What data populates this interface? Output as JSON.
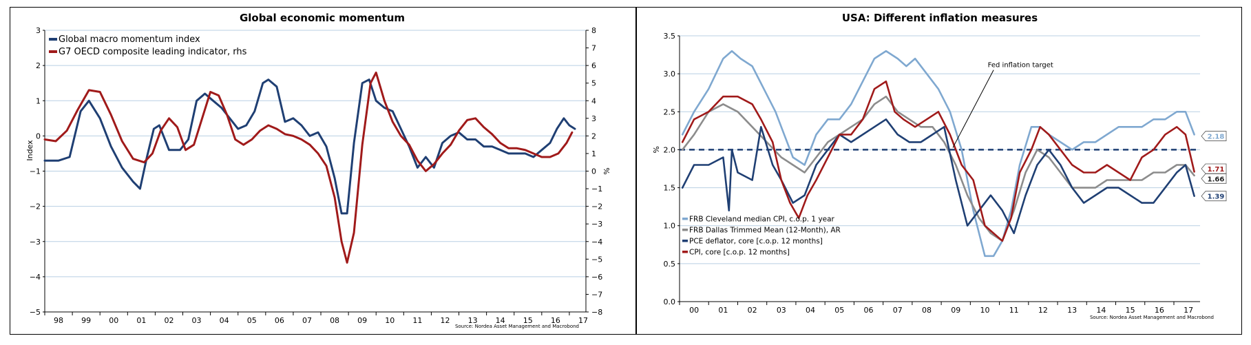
{
  "chart_data": [
    {
      "type": "line",
      "title": "Global economic momentum",
      "ylabel": "Index",
      "y2label": "%",
      "ylim": [
        -5,
        3
      ],
      "y2lim": [
        -8,
        8
      ],
      "xlim": [
        1998,
        2017.6
      ],
      "yticks": [
        3,
        2,
        1,
        0,
        -1,
        -2,
        -3,
        -4,
        -5
      ],
      "y2ticks": [
        8,
        7,
        6,
        5,
        4,
        3,
        2,
        1,
        0,
        -1,
        -2,
        -3,
        -4,
        -5,
        -6,
        -7,
        -8
      ],
      "xtick_labels": [
        "98",
        "99",
        "00",
        "01",
        "02",
        "03",
        "04",
        "05",
        "06",
        "07",
        "08",
        "09",
        "10",
        "11",
        "12",
        "13",
        "14",
        "15",
        "16",
        "17"
      ],
      "source": "Source: Nordea Asset Management and Macrobond",
      "grid": true,
      "legend_position": "top-left",
      "series": [
        {
          "name": "Global macro momentum index",
          "axis": "left",
          "color": "#1f3f73",
          "x": [
            1998.0,
            1998.5,
            1998.9,
            1999.3,
            1999.6,
            2000.0,
            2000.4,
            2000.8,
            2001.2,
            2001.45,
            2001.7,
            2001.95,
            2002.15,
            2002.5,
            2002.9,
            2003.2,
            2003.5,
            2003.8,
            2004.1,
            2004.4,
            2004.7,
            2005.0,
            2005.3,
            2005.6,
            2005.9,
            2006.1,
            2006.4,
            2006.7,
            2007.0,
            2007.3,
            2007.6,
            2007.9,
            2008.2,
            2008.5,
            2008.75,
            2008.95,
            2009.2,
            2009.5,
            2009.75,
            2010.0,
            2010.3,
            2010.6,
            2010.9,
            2011.2,
            2011.5,
            2011.8,
            2012.1,
            2012.4,
            2012.7,
            2013.0,
            2013.3,
            2013.6,
            2013.9,
            2014.2,
            2014.5,
            2014.8,
            2015.1,
            2015.4,
            2015.7,
            2016.0,
            2016.3,
            2016.55,
            2016.8,
            2017.0,
            2017.2
          ],
          "values": [
            -0.7,
            -0.7,
            -0.6,
            0.7,
            1.0,
            0.5,
            -0.3,
            -0.9,
            -1.3,
            -1.5,
            -0.6,
            0.2,
            0.3,
            -0.4,
            -0.4,
            -0.1,
            1.0,
            1.2,
            1.0,
            0.8,
            0.5,
            0.2,
            0.3,
            0.7,
            1.5,
            1.6,
            1.4,
            0.4,
            0.5,
            0.3,
            0.0,
            0.1,
            -0.3,
            -1.2,
            -2.2,
            -2.2,
            -0.2,
            1.5,
            1.6,
            1.0,
            0.8,
            0.7,
            0.2,
            -0.3,
            -0.9,
            -0.6,
            -0.9,
            -0.2,
            0.0,
            0.1,
            -0.1,
            -0.1,
            -0.3,
            -0.3,
            -0.4,
            -0.5,
            -0.5,
            -0.5,
            -0.6,
            -0.4,
            -0.2,
            0.2,
            0.5,
            0.3,
            0.2
          ]
        },
        {
          "name": "G7 OECD composite leading indicator, rhs",
          "axis": "right",
          "color": "#a01a1a",
          "x": [
            1998.0,
            1998.4,
            1998.8,
            1999.2,
            1999.6,
            2000.0,
            2000.4,
            2000.8,
            2001.2,
            2001.6,
            2001.9,
            2002.2,
            2002.5,
            2002.8,
            2003.1,
            2003.4,
            2003.7,
            2004.0,
            2004.3,
            2004.6,
            2004.9,
            2005.2,
            2005.5,
            2005.8,
            2006.1,
            2006.4,
            2006.7,
            2007.0,
            2007.3,
            2007.6,
            2007.9,
            2008.2,
            2008.5,
            2008.75,
            2008.95,
            2009.2,
            2009.5,
            2009.8,
            2010.0,
            2010.3,
            2010.6,
            2010.9,
            2011.2,
            2011.5,
            2011.8,
            2012.1,
            2012.4,
            2012.7,
            2013.0,
            2013.3,
            2013.6,
            2013.9,
            2014.2,
            2014.5,
            2014.8,
            2015.1,
            2015.4,
            2015.7,
            2016.0,
            2016.3,
            2016.6,
            2016.9,
            2017.1
          ],
          "values": [
            1.8,
            1.7,
            2.3,
            3.5,
            4.6,
            4.5,
            3.2,
            1.7,
            0.7,
            0.5,
            1.0,
            2.3,
            3.0,
            2.5,
            1.2,
            1.5,
            3.0,
            4.5,
            4.3,
            3.2,
            1.8,
            1.5,
            1.8,
            2.3,
            2.6,
            2.4,
            2.1,
            2.0,
            1.8,
            1.5,
            1.0,
            0.3,
            -1.5,
            -4.0,
            -5.2,
            -3.5,
            1.5,
            5.0,
            5.6,
            4.0,
            2.8,
            2.0,
            1.5,
            0.6,
            0.0,
            0.4,
            1.0,
            1.5,
            2.3,
            2.9,
            3.0,
            2.5,
            2.1,
            1.6,
            1.3,
            1.3,
            1.2,
            1.0,
            0.8,
            0.8,
            1.0,
            1.6,
            2.2
          ]
        }
      ]
    },
    {
      "type": "line",
      "title": "USA: Different inflation measures",
      "ylabel": "%",
      "ylim": [
        0.0,
        3.5
      ],
      "xlim": [
        1999.5,
        2017.4
      ],
      "yticks": [
        3.5,
        3.0,
        2.5,
        2.0,
        1.5,
        1.0,
        0.5,
        0.0
      ],
      "ytick_labels": [
        "3.5",
        "3.0",
        "2.5",
        "2.0",
        "1.5",
        "1.0",
        "0.5",
        "0.0"
      ],
      "xtick_labels": [
        "00",
        "01",
        "02",
        "03",
        "04",
        "05",
        "06",
        "07",
        "08",
        "09",
        "10",
        "11",
        "12",
        "13",
        "14",
        "15",
        "16",
        "17"
      ],
      "source": "Source: Nordea Asset Management and Macrobond",
      "grid": true,
      "legend_position": "bottom-left",
      "annotations": [
        {
          "text": "Fed inflation target",
          "value": 2.0
        }
      ],
      "series": [
        {
          "name": "FRB Cleveland median CPI, c.o.p. 1 year",
          "color": "#7fa8d0",
          "end_label": "2.18",
          "x": [
            1999.6,
            2000.0,
            2000.5,
            2001.0,
            2001.3,
            2001.6,
            2002.0,
            2002.4,
            2002.8,
            2003.1,
            2003.4,
            2003.8,
            2004.2,
            2004.6,
            2005.0,
            2005.4,
            2005.8,
            2006.2,
            2006.6,
            2007.0,
            2007.3,
            2007.6,
            2008.0,
            2008.4,
            2008.8,
            2009.2,
            2009.6,
            2010.0,
            2010.3,
            2010.6,
            2010.9,
            2011.2,
            2011.6,
            2011.9,
            2012.2,
            2012.6,
            2013.0,
            2013.4,
            2013.8,
            2014.2,
            2014.6,
            2015.0,
            2015.4,
            2015.8,
            2016.2,
            2016.6,
            2016.9,
            2017.2
          ],
          "values": [
            2.2,
            2.5,
            2.8,
            3.2,
            3.3,
            3.2,
            3.1,
            2.8,
            2.5,
            2.2,
            1.9,
            1.8,
            2.2,
            2.4,
            2.4,
            2.6,
            2.9,
            3.2,
            3.3,
            3.2,
            3.1,
            3.2,
            3.0,
            2.8,
            2.5,
            2.0,
            1.2,
            0.6,
            0.6,
            0.8,
            1.2,
            1.8,
            2.3,
            2.3,
            2.2,
            2.1,
            2.0,
            2.1,
            2.1,
            2.2,
            2.3,
            2.3,
            2.3,
            2.4,
            2.4,
            2.5,
            2.5,
            2.2
          ]
        },
        {
          "name": "FRB Dallas Trimmed Mean (12-Month), AR",
          "color": "#8c8c8c",
          "end_label": "1.66",
          "x": [
            1999.6,
            2000.0,
            2000.5,
            2001.0,
            2001.5,
            2002.0,
            2002.5,
            2003.0,
            2003.4,
            2003.8,
            2004.2,
            2004.6,
            2005.0,
            2005.4,
            2005.8,
            2006.2,
            2006.6,
            2007.0,
            2007.4,
            2007.8,
            2008.2,
            2008.6,
            2009.0,
            2009.4,
            2009.8,
            2010.2,
            2010.6,
            2011.0,
            2011.4,
            2011.8,
            2012.2,
            2012.6,
            2013.0,
            2013.4,
            2013.8,
            2014.2,
            2014.6,
            2015.0,
            2015.4,
            2015.8,
            2016.2,
            2016.6,
            2016.9,
            2017.2
          ],
          "values": [
            2.0,
            2.2,
            2.5,
            2.6,
            2.5,
            2.3,
            2.1,
            1.9,
            1.8,
            1.7,
            1.9,
            2.1,
            2.2,
            2.3,
            2.4,
            2.6,
            2.7,
            2.5,
            2.4,
            2.3,
            2.3,
            2.1,
            1.8,
            1.4,
            1.1,
            0.9,
            0.8,
            1.2,
            1.7,
            2.0,
            1.9,
            1.7,
            1.5,
            1.5,
            1.5,
            1.6,
            1.6,
            1.6,
            1.6,
            1.7,
            1.7,
            1.8,
            1.8,
            1.66
          ]
        },
        {
          "name": "PCE deflator, core [c.o.p. 12 months]",
          "color": "#1f3f73",
          "end_label": "1.39",
          "x": [
            1999.6,
            2000.0,
            2000.5,
            2001.0,
            2001.2,
            2001.3,
            2001.5,
            2002.0,
            2002.3,
            2002.7,
            2003.0,
            2003.4,
            2003.8,
            2004.2,
            2004.6,
            2005.0,
            2005.4,
            2005.8,
            2006.2,
            2006.6,
            2007.0,
            2007.4,
            2007.8,
            2008.2,
            2008.6,
            2009.0,
            2009.4,
            2009.8,
            2010.2,
            2010.6,
            2011.0,
            2011.4,
            2011.8,
            2012.2,
            2012.6,
            2013.0,
            2013.4,
            2013.8,
            2014.2,
            2014.6,
            2015.0,
            2015.4,
            2015.8,
            2016.2,
            2016.6,
            2016.9,
            2017.2
          ],
          "values": [
            1.5,
            1.8,
            1.8,
            1.9,
            1.2,
            2.0,
            1.7,
            1.6,
            2.3,
            1.8,
            1.6,
            1.3,
            1.4,
            1.8,
            2.0,
            2.2,
            2.1,
            2.2,
            2.3,
            2.4,
            2.2,
            2.1,
            2.1,
            2.2,
            2.3,
            1.6,
            1.0,
            1.2,
            1.4,
            1.2,
            0.9,
            1.4,
            1.8,
            2.0,
            1.8,
            1.5,
            1.3,
            1.4,
            1.5,
            1.5,
            1.4,
            1.3,
            1.3,
            1.5,
            1.7,
            1.8,
            1.39
          ]
        },
        {
          "name": "CPI, core [c.o.p. 12 months]",
          "color": "#a01a1a",
          "end_label": "1.71",
          "x": [
            1999.6,
            2000.0,
            2000.5,
            2001.0,
            2001.5,
            2002.0,
            2002.3,
            2002.7,
            2003.0,
            2003.3,
            2003.6,
            2003.9,
            2004.2,
            2004.6,
            2005.0,
            2005.4,
            2005.8,
            2006.2,
            2006.6,
            2006.9,
            2007.2,
            2007.6,
            2008.0,
            2008.4,
            2008.8,
            2009.2,
            2009.6,
            2010.0,
            2010.3,
            2010.6,
            2010.9,
            2011.2,
            2011.6,
            2011.9,
            2012.2,
            2012.6,
            2013.0,
            2013.4,
            2013.8,
            2014.2,
            2014.6,
            2015.0,
            2015.4,
            2015.8,
            2016.2,
            2016.6,
            2016.9,
            2017.2
          ],
          "values": [
            2.1,
            2.4,
            2.5,
            2.7,
            2.7,
            2.6,
            2.4,
            2.1,
            1.6,
            1.3,
            1.1,
            1.4,
            1.6,
            1.9,
            2.2,
            2.2,
            2.4,
            2.8,
            2.9,
            2.5,
            2.4,
            2.3,
            2.4,
            2.5,
            2.2,
            1.8,
            1.6,
            1.0,
            0.9,
            0.8,
            1.1,
            1.7,
            2.0,
            2.3,
            2.2,
            2.0,
            1.8,
            1.7,
            1.7,
            1.8,
            1.7,
            1.6,
            1.9,
            2.0,
            2.2,
            2.3,
            2.2,
            1.71
          ]
        }
      ]
    }
  ]
}
